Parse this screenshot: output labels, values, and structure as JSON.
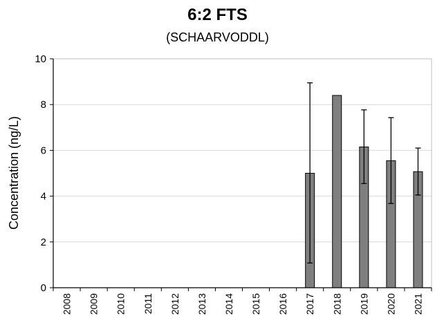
{
  "chart_data": {
    "type": "bar",
    "title": "6:2 FTS",
    "subtitle": "(SCHAARVODDL)",
    "xlabel": "",
    "ylabel": "Concentration (ng/L)",
    "ylim": [
      0,
      10
    ],
    "yticks": [
      0,
      2,
      4,
      6,
      8,
      10
    ],
    "grid": true,
    "legend": "none",
    "bar_color": "#7f7f7f",
    "categories": [
      "2008",
      "2009",
      "2010",
      "2011",
      "2012",
      "2013",
      "2014",
      "2015",
      "2016",
      "2017",
      "2018",
      "2019",
      "2020",
      "2021"
    ],
    "values": [
      null,
      null,
      null,
      null,
      null,
      null,
      null,
      null,
      null,
      5.0,
      8.4,
      6.15,
      5.55,
      5.07
    ],
    "error_low": [
      null,
      null,
      null,
      null,
      null,
      null,
      null,
      null,
      null,
      1.08,
      null,
      4.55,
      3.68,
      4.05
    ],
    "error_high": [
      null,
      null,
      null,
      null,
      null,
      null,
      null,
      null,
      null,
      8.95,
      null,
      7.77,
      7.43,
      6.1
    ]
  }
}
